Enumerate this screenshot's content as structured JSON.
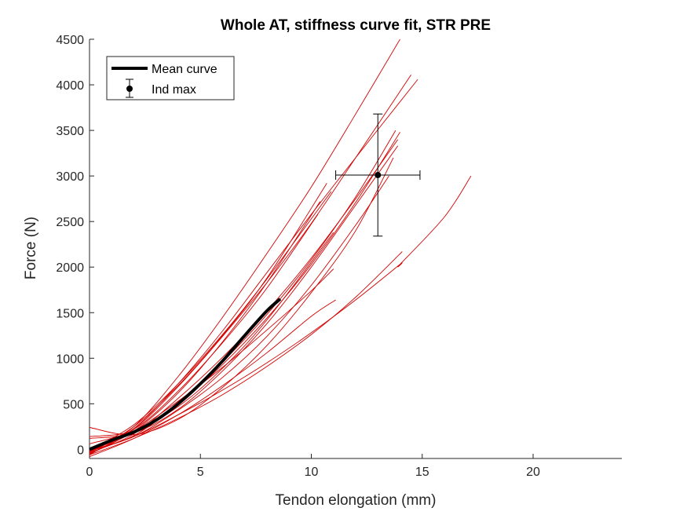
{
  "chart_data": {
    "type": "line",
    "title": "Whole AT, stiffness curve fit, STR PRE",
    "xlabel": "Tendon elongation (mm)",
    "ylabel": "Force (N)",
    "xlim": [
      0,
      24
    ],
    "ylim": [
      -100,
      4500
    ],
    "xticks": [
      0,
      5,
      10,
      15,
      20
    ],
    "yticks": [
      0,
      500,
      1000,
      1500,
      2000,
      2500,
      3000,
      3500,
      4000,
      4500
    ],
    "legend": {
      "location": "top-left",
      "entries": [
        "Mean curve",
        "Ind max"
      ]
    },
    "colors": {
      "individual": "#d40000",
      "mean": "#000000",
      "axis": "#262626"
    },
    "series": [
      {
        "name": "Mean curve",
        "role": "mean",
        "x": [
          0,
          1,
          2,
          3,
          4,
          5,
          6,
          7,
          8,
          8.6
        ],
        "y": [
          0,
          100,
          190,
          320,
          500,
          720,
          970,
          1250,
          1520,
          1650
        ]
      },
      {
        "name": "Ind max",
        "role": "errorbar",
        "x": 13.0,
        "y": 3010,
        "xerr": 1.9,
        "yerr": 670
      }
    ],
    "individual_curves": [
      {
        "x": [
          0,
          2,
          4,
          6,
          8,
          10,
          12,
          14
        ],
        "y": [
          -60,
          250,
          800,
          1450,
          2150,
          2880,
          3680,
          4500
        ]
      },
      {
        "x": [
          0,
          2,
          4,
          6,
          8,
          10,
          12,
          14.8
        ],
        "y": [
          -30,
          230,
          720,
          1300,
          1940,
          2580,
          3200,
          4060
        ]
      },
      {
        "x": [
          0,
          2,
          4,
          6,
          8,
          10,
          12,
          14.5
        ],
        "y": [
          -50,
          220,
          690,
          1240,
          1830,
          2480,
          3200,
          4110
        ]
      },
      {
        "x": [
          0,
          2,
          4,
          6,
          8,
          10,
          12,
          13.9
        ],
        "y": [
          -40,
          170,
          560,
          1010,
          1520,
          2100,
          2750,
          3400
        ]
      },
      {
        "x": [
          0,
          2,
          4,
          6,
          8,
          10,
          12,
          13.9
        ],
        "y": [
          120,
          180,
          440,
          860,
          1380,
          2000,
          2680,
          3330
        ]
      },
      {
        "x": [
          0,
          2,
          4,
          6,
          8,
          10,
          12,
          14
        ],
        "y": [
          -20,
          150,
          500,
          930,
          1440,
          2030,
          2710,
          3480
        ]
      },
      {
        "x": [
          0,
          2,
          4,
          6,
          8,
          10,
          12,
          13.8
        ],
        "y": [
          -20,
          150,
          520,
          960,
          1480,
          2080,
          2770,
          3500
        ]
      },
      {
        "x": [
          0,
          2,
          4,
          6,
          8,
          10,
          12,
          13.5
        ],
        "y": [
          -10,
          140,
          430,
          790,
          1240,
          1800,
          2460,
          3000
        ]
      },
      {
        "x": [
          0,
          2,
          4,
          6,
          8,
          10,
          12,
          13.7
        ],
        "y": [
          240,
          160,
          330,
          680,
          1140,
          1720,
          2400,
          3200
        ]
      },
      {
        "x": [
          0,
          2,
          4,
          6,
          8,
          10.7
        ],
        "y": [
          -40,
          250,
          700,
          1250,
          1880,
          2920
        ]
      },
      {
        "x": [
          0,
          2,
          4,
          6,
          8,
          10.9
        ],
        "y": [
          -10,
          270,
          720,
          1260,
          1870,
          2830
        ]
      },
      {
        "x": [
          0,
          2,
          4,
          6,
          8,
          10.4
        ],
        "y": [
          -50,
          200,
          620,
          1180,
          1830,
          2720
        ]
      },
      {
        "x": [
          0,
          2,
          4,
          6,
          8,
          10.3
        ],
        "y": [
          60,
          220,
          640,
          1170,
          1770,
          2580
        ]
      },
      {
        "x": [
          0,
          2,
          4,
          6,
          8,
          11
        ],
        "y": [
          140,
          200,
          470,
          890,
          1420,
          2380
        ]
      },
      {
        "x": [
          0,
          2,
          4,
          6,
          8,
          10,
          11
        ],
        "y": [
          -20,
          200,
          530,
          900,
          1310,
          1740,
          1980
        ]
      },
      {
        "x": [
          0,
          2,
          4,
          6,
          8,
          10,
          11.1
        ],
        "y": [
          -80,
          120,
          380,
          700,
          1060,
          1460,
          1640
        ]
      },
      {
        "x": [
          0,
          2,
          4,
          6,
          8,
          10,
          12,
          14,
          14,
          16,
          17.2
        ],
        "y": [
          -20,
          140,
          380,
          650,
          950,
          1280,
          1640,
          2030,
          2030,
          2550,
          3000
        ]
      },
      {
        "x": [
          0,
          2,
          4,
          6,
          8,
          10,
          12,
          14.1
        ],
        "y": [
          -60,
          120,
          340,
          600,
          910,
          1260,
          1670,
          2170
        ]
      }
    ]
  }
}
